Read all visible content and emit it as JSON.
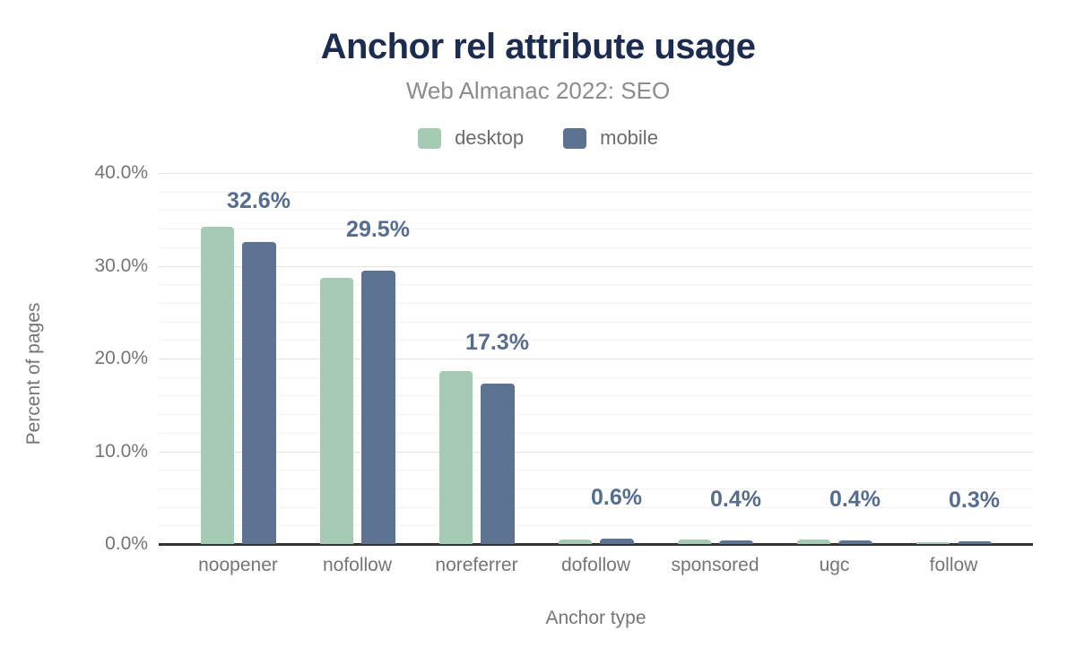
{
  "chart_data": {
    "type": "bar",
    "title": "Anchor rel attribute usage",
    "subtitle": "Web Almanac 2022: SEO",
    "categories": [
      "noopener",
      "nofollow",
      "noreferrer",
      "dofollow",
      "sponsored",
      "ugc",
      "follow"
    ],
    "series": [
      {
        "name": "desktop",
        "color": "#a6cbb5",
        "values": [
          34.2,
          28.7,
          18.6,
          0.5,
          0.5,
          0.5,
          0.2
        ]
      },
      {
        "name": "mobile",
        "color": "#5d7392",
        "values": [
          32.6,
          29.5,
          17.3,
          0.6,
          0.4,
          0.4,
          0.3
        ]
      }
    ],
    "data_labels": {
      "labeled_series": "mobile",
      "labels": [
        "32.6%",
        "29.5%",
        "17.3%",
        "0.6%",
        "0.4%",
        "0.4%",
        "0.3%"
      ]
    },
    "xlabel": "Anchor type",
    "ylabel": "Percent of pages",
    "ylim": [
      0,
      40
    ],
    "y_ticks": [
      "0.0%",
      "10.0%",
      "20.0%",
      "30.0%",
      "40.0%"
    ],
    "y_tick_values": [
      0,
      10,
      20,
      30,
      40
    ],
    "grid": {
      "major_interval": 10,
      "minor_interval": 2,
      "shown": true
    },
    "legend_position": "top",
    "colors": {
      "title": "#1c2c50",
      "subtitle": "#8c8c8c",
      "data_label": "#566d90",
      "axis_text": "#757575",
      "baseline": "#333333"
    }
  }
}
